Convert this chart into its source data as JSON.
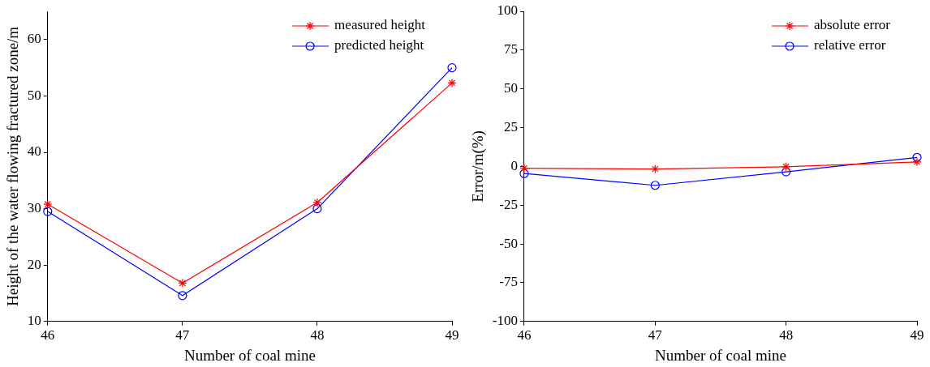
{
  "chart_data": [
    {
      "type": "line",
      "xlabel": "Number of coal mine",
      "ylabel": "Height of the water flowing fractured zone/m",
      "x": [
        46,
        47,
        48,
        49
      ],
      "xlim": [
        46,
        49
      ],
      "xticks": [
        46,
        47,
        48,
        49
      ],
      "ylim": [
        10,
        65
      ],
      "yticks": [
        10,
        20,
        30,
        40,
        50,
        60
      ],
      "grid": false,
      "legend": "top right",
      "line_style": "solid",
      "series": [
        {
          "name": "measured height",
          "color": "#ff0000",
          "marker": "cross",
          "values": [
            30.8,
            16.8,
            31.1,
            52.3
          ]
        },
        {
          "name": "predicted height",
          "color": "#0000ff",
          "marker": "circle",
          "values": [
            29.5,
            14.6,
            30.0,
            55.0
          ]
        }
      ]
    },
    {
      "type": "line",
      "xlabel": "Number of coal mine",
      "ylabel": "Error/m(%)",
      "x": [
        46,
        47,
        48,
        49
      ],
      "xlim": [
        46,
        49
      ],
      "xticks": [
        46,
        47,
        48,
        49
      ],
      "ylim": [
        -100,
        100
      ],
      "yticks": [
        -100,
        -75,
        -50,
        -25,
        0,
        25,
        50,
        75,
        100
      ],
      "grid": false,
      "legend": "top right",
      "line_style": "solid",
      "series": [
        {
          "name": "absolute error",
          "color": "#ff0000",
          "marker": "cross",
          "values": [
            -1.2,
            -1.7,
            -0.2,
            2.9
          ]
        },
        {
          "name": "relative error",
          "color": "#0000ff",
          "marker": "circle",
          "values": [
            -4.6,
            -12.2,
            -3.5,
            5.8
          ]
        }
      ]
    }
  ]
}
